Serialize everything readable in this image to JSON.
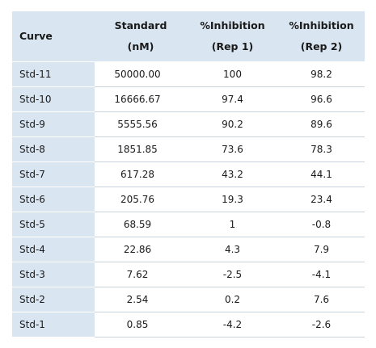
{
  "table": {
    "headers": {
      "curve": "Curve",
      "standard_line1": "Standard",
      "standard_line2": "(nM)",
      "rep1_line1": "%Inhibition",
      "rep1_line2": "(Rep 1)",
      "rep2_line1": "%Inhibition",
      "rep2_line2": "(Rep 2)"
    },
    "rows": [
      {
        "curve": "Std-11",
        "standard": "50000.00",
        "rep1": "100",
        "rep2": "98.2"
      },
      {
        "curve": "Std-10",
        "standard": "16666.67",
        "rep1": "97.4",
        "rep2": "96.6"
      },
      {
        "curve": "Std-9",
        "standard": "5555.56",
        "rep1": "90.2",
        "rep2": "89.6"
      },
      {
        "curve": "Std-8",
        "standard": "1851.85",
        "rep1": "73.6",
        "rep2": "78.3"
      },
      {
        "curve": "Std-7",
        "standard": "617.28",
        "rep1": "43.2",
        "rep2": "44.1"
      },
      {
        "curve": "Std-6",
        "standard": "205.76",
        "rep1": "19.3",
        "rep2": "23.4"
      },
      {
        "curve": "Std-5",
        "standard": "68.59",
        "rep1": "1",
        "rep2": "-0.8"
      },
      {
        "curve": "Std-4",
        "standard": "22.86",
        "rep1": "4.3",
        "rep2": "7.9"
      },
      {
        "curve": "Std-3",
        "standard": "7.62",
        "rep1": "-2.5",
        "rep2": "-4.1"
      },
      {
        "curve": "Std-2",
        "standard": "2.54",
        "rep1": "0.2",
        "rep2": "7.6"
      },
      {
        "curve": "Std-1",
        "standard": "0.85",
        "rep1": "-4.2",
        "rep2": "-2.6"
      }
    ]
  },
  "colors": {
    "header_bg": "#d9e5f1",
    "row_divider": "#c9d4df"
  }
}
